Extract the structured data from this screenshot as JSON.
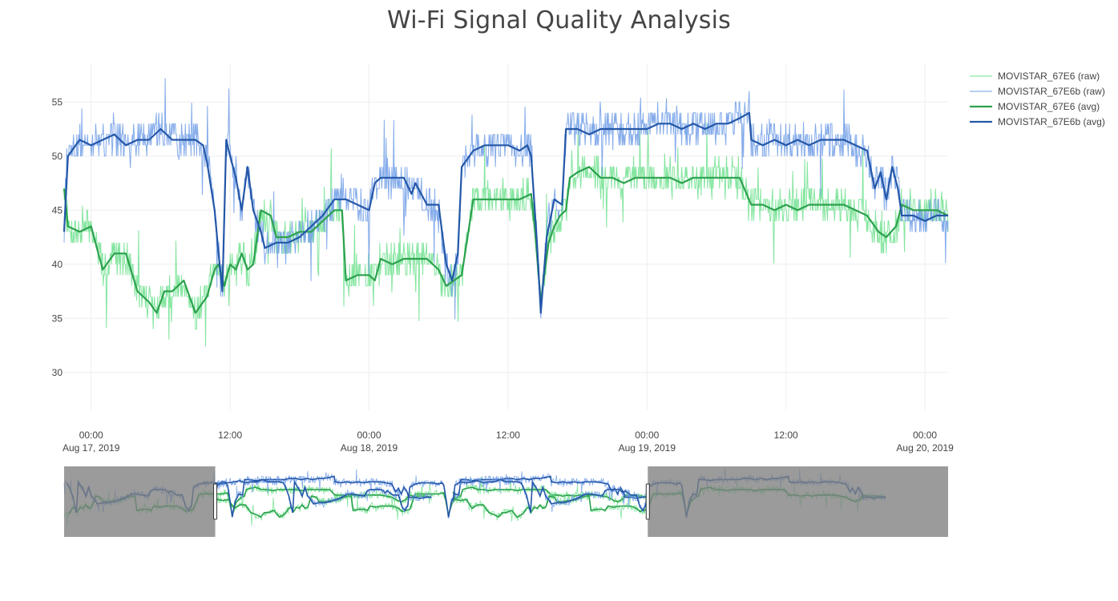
{
  "chart_data": {
    "type": "line",
    "title": "Wi-Fi Signal Quality Analysis",
    "xlabel": "",
    "ylabel": "",
    "x_range": [
      "2019-08-16 21:40",
      "2019-08-20 02:00"
    ],
    "ylim": [
      26.5,
      58.5
    ],
    "y_ticks": [
      30,
      35,
      40,
      45,
      50,
      55
    ],
    "x_ticks": [
      {
        "t": "2019-08-17 00:00",
        "line1": "00:00",
        "line2": "Aug 17, 2019"
      },
      {
        "t": "2019-08-17 12:00",
        "line1": "12:00",
        "line2": ""
      },
      {
        "t": "2019-08-18 00:00",
        "line1": "00:00",
        "line2": "Aug 18, 2019"
      },
      {
        "t": "2019-08-18 12:00",
        "line1": "12:00",
        "line2": ""
      },
      {
        "t": "2019-08-19 00:00",
        "line1": "00:00",
        "line2": "Aug 19, 2019"
      },
      {
        "t": "2019-08-19 12:00",
        "line1": "12:00",
        "line2": ""
      },
      {
        "t": "2019-08-20 00:00",
        "line1": "00:00",
        "line2": "Aug 20, 2019"
      }
    ],
    "grid": true,
    "legend_position": "top-right",
    "series": [
      {
        "name": "MOVISTAR_67E6 (raw)",
        "kind": "raw",
        "color": "#6ee08e"
      },
      {
        "name": "MOVISTAR_67E6b (raw)",
        "kind": "raw",
        "color": "#6f9ce6"
      },
      {
        "name": "MOVISTAR_67E6 (avg)",
        "kind": "avg",
        "color": "#2ca14d",
        "points": [
          [
            "2019-08-16 21:40",
            47
          ],
          [
            "2019-08-16 22:00",
            43.5
          ],
          [
            "2019-08-16 23:00",
            43
          ],
          [
            "2019-08-17 00:00",
            43.5
          ],
          [
            "2019-08-17 00:30",
            41.5
          ],
          [
            "2019-08-17 01:00",
            39.5
          ],
          [
            "2019-08-17 02:00",
            41
          ],
          [
            "2019-08-17 03:00",
            41
          ],
          [
            "2019-08-17 04:00",
            37.5
          ],
          [
            "2019-08-17 05:00",
            36.5
          ],
          [
            "2019-08-17 05:40",
            35.5
          ],
          [
            "2019-08-17 06:20",
            37.5
          ],
          [
            "2019-08-17 07:00",
            37.5
          ],
          [
            "2019-08-17 08:00",
            38.5
          ],
          [
            "2019-08-17 09:00",
            35.5
          ],
          [
            "2019-08-17 10:00",
            37
          ],
          [
            "2019-08-17 10:40",
            39.5
          ],
          [
            "2019-08-17 11:00",
            40
          ],
          [
            "2019-08-17 11:30",
            38
          ],
          [
            "2019-08-17 12:00",
            40
          ],
          [
            "2019-08-17 12:30",
            39.5
          ],
          [
            "2019-08-17 13:00",
            41
          ],
          [
            "2019-08-17 13:30",
            39.5
          ],
          [
            "2019-08-17 14:00",
            40
          ],
          [
            "2019-08-17 14:40",
            45
          ],
          [
            "2019-08-17 15:30",
            44.5
          ],
          [
            "2019-08-17 16:00",
            42.5
          ],
          [
            "2019-08-17 17:00",
            42.5
          ],
          [
            "2019-08-17 18:00",
            43
          ],
          [
            "2019-08-17 19:00",
            43
          ],
          [
            "2019-08-17 20:00",
            44
          ],
          [
            "2019-08-17 21:00",
            45
          ],
          [
            "2019-08-17 21:40",
            45
          ],
          [
            "2019-08-17 22:00",
            38.5
          ],
          [
            "2019-08-17 23:00",
            39
          ],
          [
            "2019-08-18 00:00",
            39
          ],
          [
            "2019-08-18 00:30",
            38.5
          ],
          [
            "2019-08-18 01:00",
            40.5
          ],
          [
            "2019-08-18 02:00",
            40
          ],
          [
            "2019-08-18 03:00",
            40.5
          ],
          [
            "2019-08-18 04:00",
            40.5
          ],
          [
            "2019-08-18 05:00",
            40.5
          ],
          [
            "2019-08-18 06:00",
            39.5
          ],
          [
            "2019-08-18 06:40",
            38
          ],
          [
            "2019-08-18 07:20",
            38.5
          ],
          [
            "2019-08-18 08:00",
            39
          ],
          [
            "2019-08-18 09:00",
            46
          ],
          [
            "2019-08-18 10:00",
            46
          ],
          [
            "2019-08-18 11:00",
            46
          ],
          [
            "2019-08-18 12:00",
            46
          ],
          [
            "2019-08-18 13:00",
            46
          ],
          [
            "2019-08-18 14:00",
            46.5
          ],
          [
            "2019-08-18 14:20",
            43
          ],
          [
            "2019-08-18 14:50",
            36.5
          ],
          [
            "2019-08-18 15:30",
            42
          ],
          [
            "2019-08-18 16:00",
            43.5
          ],
          [
            "2019-08-18 16:30",
            44.5
          ],
          [
            "2019-08-18 17:00",
            45
          ],
          [
            "2019-08-18 17:20",
            48
          ],
          [
            "2019-08-18 18:00",
            48.5
          ],
          [
            "2019-08-18 19:00",
            49
          ],
          [
            "2019-08-18 20:00",
            48
          ],
          [
            "2019-08-18 21:00",
            48
          ],
          [
            "2019-08-18 22:00",
            47.5
          ],
          [
            "2019-08-18 23:00",
            48
          ],
          [
            "2019-08-19 00:00",
            48
          ],
          [
            "2019-08-19 01:00",
            48
          ],
          [
            "2019-08-19 02:00",
            48
          ],
          [
            "2019-08-19 03:00",
            47.5
          ],
          [
            "2019-08-19 04:00",
            48
          ],
          [
            "2019-08-19 05:00",
            48
          ],
          [
            "2019-08-19 06:00",
            48
          ],
          [
            "2019-08-19 07:00",
            48
          ],
          [
            "2019-08-19 08:00",
            48
          ],
          [
            "2019-08-19 09:00",
            45.5
          ],
          [
            "2019-08-19 10:00",
            45.5
          ],
          [
            "2019-08-19 11:00",
            45
          ],
          [
            "2019-08-19 12:00",
            45.5
          ],
          [
            "2019-08-19 13:00",
            45
          ],
          [
            "2019-08-19 14:00",
            45.5
          ],
          [
            "2019-08-19 15:00",
            45.5
          ],
          [
            "2019-08-19 16:00",
            45.5
          ],
          [
            "2019-08-19 17:00",
            45.5
          ],
          [
            "2019-08-19 18:00",
            45
          ],
          [
            "2019-08-19 19:00",
            44.5
          ],
          [
            "2019-08-19 20:00",
            43
          ],
          [
            "2019-08-19 20:40",
            42.5
          ],
          [
            "2019-08-19 21:30",
            43.5
          ],
          [
            "2019-08-19 22:00",
            45.5
          ],
          [
            "2019-08-19 23:00",
            45
          ],
          [
            "2019-08-20 00:00",
            45
          ],
          [
            "2019-08-20 01:00",
            45
          ],
          [
            "2019-08-20 02:00",
            44.5
          ]
        ]
      },
      {
        "name": "MOVISTAR_67E6b (avg)",
        "kind": "avg",
        "color": "#2457a8",
        "points": [
          [
            "2019-08-16 21:40",
            43
          ],
          [
            "2019-08-16 22:00",
            50
          ],
          [
            "2019-08-16 23:00",
            51.5
          ],
          [
            "2019-08-17 00:00",
            51
          ],
          [
            "2019-08-17 01:00",
            51.5
          ],
          [
            "2019-08-17 02:00",
            52
          ],
          [
            "2019-08-17 03:00",
            51
          ],
          [
            "2019-08-17 04:00",
            51.5
          ],
          [
            "2019-08-17 05:00",
            51.5
          ],
          [
            "2019-08-17 06:00",
            52.5
          ],
          [
            "2019-08-17 07:00",
            51.5
          ],
          [
            "2019-08-17 08:00",
            51.5
          ],
          [
            "2019-08-17 09:00",
            51.5
          ],
          [
            "2019-08-17 09:40",
            51
          ],
          [
            "2019-08-17 10:00",
            49.5
          ],
          [
            "2019-08-17 10:40",
            45
          ],
          [
            "2019-08-17 11:00",
            41
          ],
          [
            "2019-08-17 11:20",
            37.5
          ],
          [
            "2019-08-17 11:40",
            51.5
          ],
          [
            "2019-08-17 12:00",
            50
          ],
          [
            "2019-08-17 12:30",
            48
          ],
          [
            "2019-08-17 13:00",
            45
          ],
          [
            "2019-08-17 13:30",
            49
          ],
          [
            "2019-08-17 14:00",
            45
          ],
          [
            "2019-08-17 14:40",
            43
          ],
          [
            "2019-08-17 15:00",
            41.5
          ],
          [
            "2019-08-17 16:00",
            42
          ],
          [
            "2019-08-17 17:00",
            42
          ],
          [
            "2019-08-17 18:00",
            42.5
          ],
          [
            "2019-08-17 19:00",
            43.5
          ],
          [
            "2019-08-17 20:00",
            44.5
          ],
          [
            "2019-08-17 21:00",
            46
          ],
          [
            "2019-08-17 22:00",
            46
          ],
          [
            "2019-08-17 23:00",
            45.5
          ],
          [
            "2019-08-18 00:00",
            45
          ],
          [
            "2019-08-18 00:30",
            47.5
          ],
          [
            "2019-08-18 01:00",
            48
          ],
          [
            "2019-08-18 02:00",
            48
          ],
          [
            "2019-08-18 03:00",
            48
          ],
          [
            "2019-08-18 03:40",
            46.5
          ],
          [
            "2019-08-18 04:00",
            47.5
          ],
          [
            "2019-08-18 05:00",
            45.5
          ],
          [
            "2019-08-18 06:00",
            45.5
          ],
          [
            "2019-08-18 06:40",
            40
          ],
          [
            "2019-08-18 07:10",
            38.5
          ],
          [
            "2019-08-18 07:40",
            41
          ],
          [
            "2019-08-18 08:00",
            49
          ],
          [
            "2019-08-18 09:00",
            50.5
          ],
          [
            "2019-08-18 10:00",
            51
          ],
          [
            "2019-08-18 11:00",
            51
          ],
          [
            "2019-08-18 12:00",
            51
          ],
          [
            "2019-08-18 13:00",
            50.5
          ],
          [
            "2019-08-18 13:40",
            51
          ],
          [
            "2019-08-18 14:00",
            50
          ],
          [
            "2019-08-18 14:30",
            42
          ],
          [
            "2019-08-18 14:50",
            35.5
          ],
          [
            "2019-08-18 15:20",
            42.5
          ],
          [
            "2019-08-18 16:00",
            46
          ],
          [
            "2019-08-18 16:40",
            45.5
          ],
          [
            "2019-08-18 17:00",
            52.5
          ],
          [
            "2019-08-18 18:00",
            52.5
          ],
          [
            "2019-08-18 19:00",
            52
          ],
          [
            "2019-08-18 20:00",
            52.5
          ],
          [
            "2019-08-18 21:00",
            52.5
          ],
          [
            "2019-08-18 22:00",
            52.5
          ],
          [
            "2019-08-18 23:00",
            52.5
          ],
          [
            "2019-08-19 00:00",
            52.5
          ],
          [
            "2019-08-19 01:00",
            53
          ],
          [
            "2019-08-19 02:00",
            53
          ],
          [
            "2019-08-19 03:00",
            52.5
          ],
          [
            "2019-08-19 04:00",
            53
          ],
          [
            "2019-08-19 05:00",
            52.5
          ],
          [
            "2019-08-19 06:00",
            53
          ],
          [
            "2019-08-19 07:00",
            53
          ],
          [
            "2019-08-19 08:00",
            53.5
          ],
          [
            "2019-08-19 08:50",
            54
          ],
          [
            "2019-08-19 09:00",
            51.5
          ],
          [
            "2019-08-19 10:00",
            51
          ],
          [
            "2019-08-19 11:00",
            51.5
          ],
          [
            "2019-08-19 12:00",
            51
          ],
          [
            "2019-08-19 13:00",
            51.5
          ],
          [
            "2019-08-19 14:00",
            51
          ],
          [
            "2019-08-19 15:00",
            51.5
          ],
          [
            "2019-08-19 16:00",
            51.5
          ],
          [
            "2019-08-19 17:00",
            51.5
          ],
          [
            "2019-08-19 18:00",
            51
          ],
          [
            "2019-08-19 19:00",
            50.5
          ],
          [
            "2019-08-19 19:40",
            47
          ],
          [
            "2019-08-19 20:10",
            48.5
          ],
          [
            "2019-08-19 20:40",
            46
          ],
          [
            "2019-08-19 21:10",
            49
          ],
          [
            "2019-08-19 21:40",
            47
          ],
          [
            "2019-08-19 22:00",
            44.5
          ],
          [
            "2019-08-19 23:00",
            44.5
          ],
          [
            "2019-08-20 00:00",
            44
          ],
          [
            "2019-08-20 01:00",
            44.5
          ],
          [
            "2019-08-20 02:00",
            44.5
          ]
        ]
      }
    ]
  },
  "rangeslider": {
    "range": [
      "2019-08-15 19:00",
      "2019-08-22 07:00"
    ],
    "ylim": [
      26.5,
      58.5
    ],
    "visible": [
      "2019-08-16 21:40",
      "2019-08-20 02:00"
    ]
  }
}
